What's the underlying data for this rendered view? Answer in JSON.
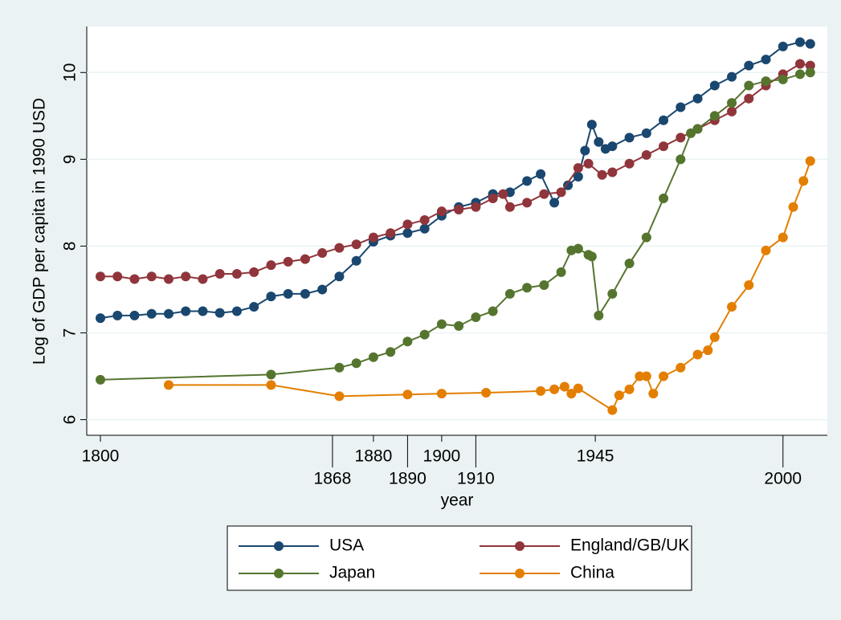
{
  "chart_data": {
    "type": "line",
    "xlabel": "year",
    "ylabel": "Log of GDP per capita in 1990 USD",
    "xlim": [
      1796,
      2013
    ],
    "ylim": [
      5.82,
      10.53
    ],
    "xticks": [
      1800,
      1868,
      1880,
      1890,
      1900,
      1910,
      1945,
      2000
    ],
    "yticks": [
      6,
      7,
      8,
      9,
      10
    ],
    "grid": true,
    "legend": "bottom",
    "series": [
      {
        "name": "USA",
        "color": "#1a476f",
        "x": [
          1800,
          1805,
          1810,
          1815,
          1820,
          1825,
          1830,
          1835,
          1840,
          1845,
          1850,
          1855,
          1860,
          1865,
          1870,
          1875,
          1880,
          1885,
          1890,
          1895,
          1900,
          1905,
          1910,
          1915,
          1920,
          1925,
          1929,
          1933,
          1937,
          1940,
          1942,
          1944,
          1946,
          1948,
          1950,
          1955,
          1960,
          1965,
          1970,
          1975,
          1980,
          1985,
          1990,
          1995,
          2000,
          2005,
          2008
        ],
        "values": [
          7.17,
          7.2,
          7.2,
          7.22,
          7.22,
          7.25,
          7.25,
          7.23,
          7.25,
          7.3,
          7.42,
          7.45,
          7.45,
          7.5,
          7.65,
          7.83,
          8.05,
          8.12,
          8.15,
          8.2,
          8.35,
          8.45,
          8.5,
          8.6,
          8.62,
          8.75,
          8.83,
          8.5,
          8.7,
          8.8,
          9.1,
          9.4,
          9.2,
          9.12,
          9.15,
          9.25,
          9.3,
          9.45,
          9.6,
          9.7,
          9.85,
          9.95,
          10.08,
          10.15,
          10.3,
          10.35,
          10.33
        ]
      },
      {
        "name": "England/GB/UK",
        "color": "#90353b",
        "x": [
          1800,
          1805,
          1810,
          1815,
          1820,
          1825,
          1830,
          1835,
          1840,
          1845,
          1850,
          1855,
          1860,
          1865,
          1870,
          1875,
          1880,
          1885,
          1890,
          1895,
          1900,
          1905,
          1910,
          1915,
          1918,
          1920,
          1925,
          1930,
          1935,
          1940,
          1943,
          1947,
          1950,
          1955,
          1960,
          1965,
          1970,
          1975,
          1980,
          1985,
          1990,
          1995,
          2000,
          2005,
          2008
        ],
        "values": [
          7.65,
          7.65,
          7.62,
          7.65,
          7.62,
          7.65,
          7.62,
          7.68,
          7.68,
          7.7,
          7.78,
          7.82,
          7.85,
          7.92,
          7.98,
          8.02,
          8.1,
          8.15,
          8.25,
          8.3,
          8.4,
          8.42,
          8.45,
          8.55,
          8.6,
          8.45,
          8.5,
          8.6,
          8.62,
          8.9,
          8.95,
          8.82,
          8.85,
          8.95,
          9.05,
          9.15,
          9.25,
          9.35,
          9.45,
          9.55,
          9.7,
          9.85,
          9.98,
          10.1,
          10.08
        ]
      },
      {
        "name": "Japan",
        "color": "#55752f",
        "x": [
          1800,
          1850,
          1870,
          1875,
          1880,
          1885,
          1890,
          1895,
          1900,
          1905,
          1910,
          1915,
          1920,
          1925,
          1930,
          1935,
          1938,
          1940,
          1943,
          1944,
          1946,
          1950,
          1955,
          1960,
          1965,
          1970,
          1973,
          1975,
          1980,
          1985,
          1990,
          1995,
          2000,
          2005,
          2008
        ],
        "values": [
          6.46,
          6.52,
          6.6,
          6.65,
          6.72,
          6.78,
          6.9,
          6.98,
          7.1,
          7.08,
          7.18,
          7.25,
          7.45,
          7.52,
          7.55,
          7.7,
          7.95,
          7.97,
          7.9,
          7.88,
          7.2,
          7.45,
          7.8,
          8.1,
          8.55,
          9.0,
          9.3,
          9.35,
          9.5,
          9.65,
          9.85,
          9.9,
          9.92,
          9.98,
          10.0
        ]
      },
      {
        "name": "China",
        "color": "#e37e00",
        "x": [
          1820,
          1850,
          1870,
          1890,
          1900,
          1913,
          1929,
          1933,
          1936,
          1938,
          1940,
          1950,
          1952,
          1955,
          1958,
          1960,
          1962,
          1965,
          1970,
          1975,
          1978,
          1980,
          1985,
          1990,
          1995,
          2000,
          2003,
          2006,
          2008
        ],
        "values": [
          6.4,
          6.4,
          6.27,
          6.29,
          6.3,
          6.31,
          6.33,
          6.35,
          6.38,
          6.3,
          6.36,
          6.11,
          6.28,
          6.35,
          6.5,
          6.5,
          6.3,
          6.5,
          6.6,
          6.75,
          6.8,
          6.95,
          7.3,
          7.55,
          7.95,
          8.1,
          8.45,
          8.75,
          8.98
        ]
      }
    ]
  }
}
